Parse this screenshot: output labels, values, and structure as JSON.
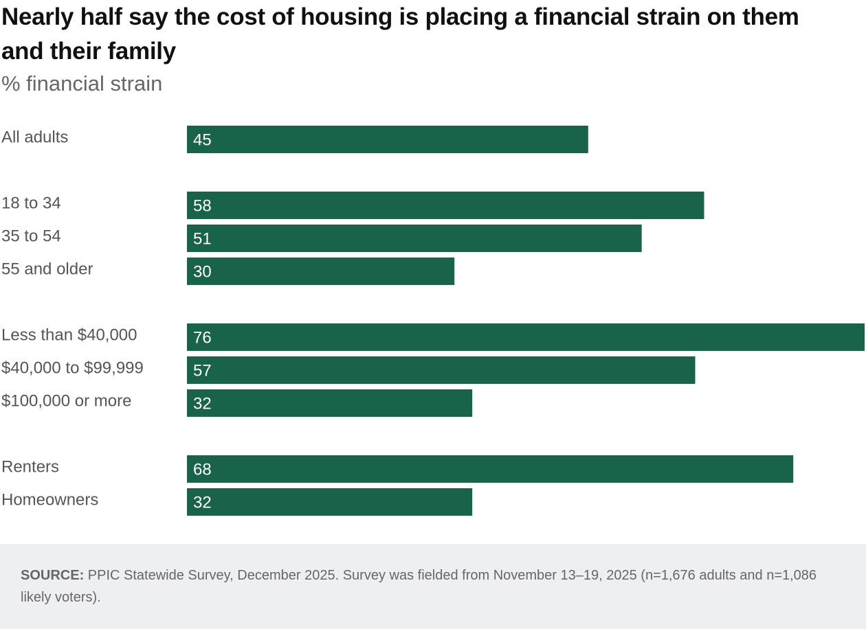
{
  "chart_data": {
    "type": "bar",
    "orientation": "horizontal",
    "title": "Nearly half say the cost of housing is placing a financial strain on them and their family",
    "subtitle": "% financial strain",
    "categories": [
      "All adults",
      null,
      "18 to 34",
      "35 to 54",
      "55 and older",
      null,
      "Less than $40,000",
      "$40,000 to $99,999",
      "$100,000 or more",
      null,
      "Renters",
      "Homeowners"
    ],
    "values": [
      45,
      null,
      58,
      51,
      30,
      null,
      76,
      57,
      32,
      null,
      68,
      32
    ],
    "color": "#1a634b",
    "xlim": [
      0,
      76
    ],
    "source_label": "SOURCE:",
    "source": "PPIC Statewide Survey, December 2025. Survey was fielded from November 13–19, 2025 (n=1,676 adults and n=1,086 likely voters)."
  }
}
